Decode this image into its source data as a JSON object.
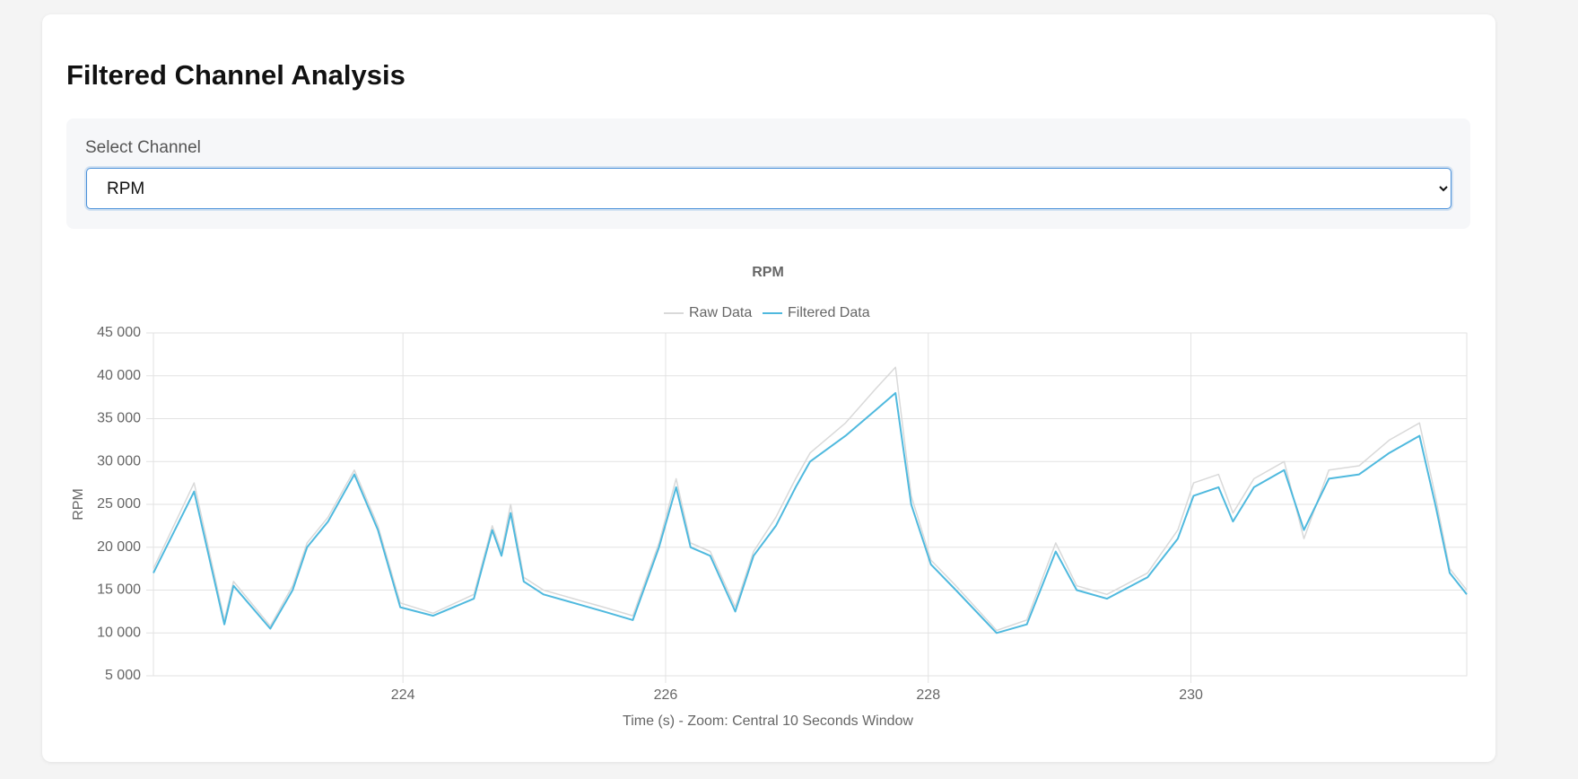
{
  "header": {
    "title": "Filtered Channel Analysis"
  },
  "controls": {
    "label": "Select Channel",
    "selected": "RPM"
  },
  "chart_data": {
    "type": "line",
    "title": "RPM",
    "x_label": "Time (s) - Zoom: Central 10 Seconds Window",
    "y_label": "RPM",
    "legend": "top",
    "grid": true,
    "x": [
      222.1,
      222.41,
      222.64,
      222.71,
      222.99,
      223.16,
      223.27,
      223.43,
      223.63,
      223.81,
      223.98,
      224.23,
      224.54,
      224.68,
      224.75,
      224.82,
      224.92,
      225.07,
      225.3,
      225.53,
      225.75,
      225.95,
      226.08,
      226.19,
      226.34,
      226.53,
      226.67,
      226.84,
      226.99,
      227.1,
      227.37,
      227.6,
      227.75,
      227.87,
      228.02,
      228.21,
      228.52,
      228.75,
      228.97,
      229.13,
      229.36,
      229.67,
      229.9,
      230.02,
      230.21,
      230.32,
      230.48,
      230.71,
      230.86,
      231.05,
      231.28,
      231.51,
      231.74,
      231.86,
      231.97,
      232.1
    ],
    "series": [
      {
        "name": "Raw Data",
        "color": "#d9d9d9",
        "values": [
          17500,
          27500,
          11500,
          16000,
          10800,
          15500,
          20500,
          23500,
          29000,
          22500,
          13500,
          12300,
          14500,
          22500,
          19500,
          25000,
          16500,
          15000,
          14000,
          13000,
          12000,
          20500,
          28000,
          20500,
          19500,
          13000,
          19500,
          23500,
          28000,
          31000,
          34500,
          38500,
          41000,
          26000,
          18500,
          15500,
          10300,
          11500,
          20500,
          15500,
          14500,
          17000,
          22000,
          27500,
          28500,
          24000,
          28000,
          30000,
          21000,
          29000,
          29500,
          32500,
          34500,
          26000,
          17500,
          15000
        ]
      },
      {
        "name": "Filtered Data",
        "color": "#4fb9de",
        "values": [
          17000,
          26500,
          11000,
          15500,
          10500,
          15000,
          20000,
          23000,
          28500,
          22000,
          13000,
          12000,
          14000,
          22000,
          19000,
          24000,
          16000,
          14500,
          13500,
          12500,
          11500,
          20000,
          27000,
          20000,
          19000,
          12500,
          19000,
          22500,
          27000,
          30000,
          33000,
          36000,
          38000,
          25000,
          18000,
          15000,
          10000,
          11000,
          19500,
          15000,
          14000,
          16500,
          21000,
          26000,
          27000,
          23000,
          27000,
          29000,
          22000,
          28000,
          28500,
          31000,
          33000,
          25000,
          17000,
          14500
        ]
      }
    ],
    "xlim": [
      222.1,
      232.1
    ],
    "xticks": [
      224,
      226,
      228,
      230
    ],
    "ylim": [
      5000,
      45000
    ],
    "yticks": [
      {
        "value": 5000,
        "label": "5 000"
      },
      {
        "value": 10000,
        "label": "10 000"
      },
      {
        "value": 15000,
        "label": "15 000"
      },
      {
        "value": 20000,
        "label": "20 000"
      },
      {
        "value": 25000,
        "label": "25 000"
      },
      {
        "value": 30000,
        "label": "30 000"
      },
      {
        "value": 35000,
        "label": "35 000"
      },
      {
        "value": 40000,
        "label": "40 000"
      },
      {
        "value": 45000,
        "label": "45 000"
      }
    ]
  }
}
